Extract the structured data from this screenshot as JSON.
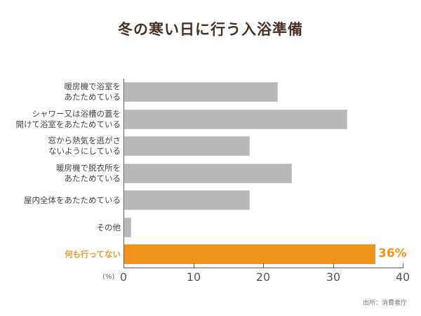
{
  "chart_data": {
    "type": "bar",
    "orientation": "horizontal",
    "title": "冬の寒い日に行う入浴準備",
    "categories": [
      "暖房機で浴室を\nあたためている",
      "シャワー又は浴槽の蓋を\n開けて浴室をあたためている",
      "窓から熱気を逃がさ\nないようにしている",
      "暖房機で脱衣所を\nあたためている",
      "屋内全体をあたためている",
      "その他",
      "何も行ってない"
    ],
    "values": [
      22,
      32,
      18,
      24,
      18,
      1,
      36
    ],
    "highlight_index": 6,
    "highlight_label": "36%",
    "xlabel": "(%)",
    "ylabel": "",
    "xlim": [
      0,
      40
    ],
    "xticks": [
      "0",
      "10",
      "20",
      "30",
      "40"
    ],
    "grid": false,
    "legend": null,
    "colors": {
      "default": "#b8b8b8",
      "highlight": "#f0931c",
      "title": "#4a3024"
    },
    "source": "出所：消費者庁"
  }
}
